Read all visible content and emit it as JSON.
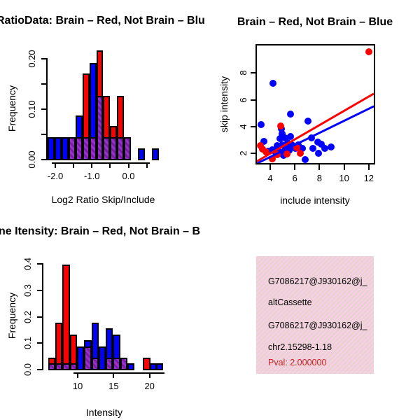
{
  "colors": {
    "brain_red": "#ff0000",
    "not_brain_blue": "#0000ff",
    "overlap_purple": "#9a2fd0",
    "overlap_purple_hatch": "#7a1ba6",
    "pval_red": "#cc2222",
    "info_box_pink": "#f7cfe5",
    "background": "#ffffff"
  },
  "chart_data": [
    {
      "id": "ratio_hist",
      "type": "bar",
      "title": "RatioData: Brain – Red, Not Brain – Blu",
      "xlabel": "Log2 Ratio Skip/Include",
      "ylabel": "Frequency",
      "series_legend": [
        {
          "name": "Brain",
          "color": "#ff0000"
        },
        {
          "name": "Not Brain",
          "color": "#0000ff"
        }
      ],
      "xlim": [
        -2.2,
        0.9
      ],
      "ylim": [
        0,
        0.22
      ],
      "x_ticks": [
        {
          "v": -2.0,
          "label": "-2.0"
        },
        {
          "v": -1.5,
          "label": ""
        },
        {
          "v": -1.0,
          "label": "-1.0"
        },
        {
          "v": -0.5,
          "label": ""
        },
        {
          "v": 0.0,
          "label": "0.0"
        },
        {
          "v": 0.5,
          "label": ""
        }
      ],
      "y_ticks": [
        {
          "v": 0.0,
          "label": "0.00"
        },
        {
          "v": 0.05,
          "label": ""
        },
        {
          "v": 0.1,
          "label": "0.10"
        },
        {
          "v": 0.15,
          "label": ""
        },
        {
          "v": 0.2,
          "label": "0.20"
        }
      ],
      "bar_width": 0.19,
      "bars": [
        {
          "x": -2.19,
          "red": 0,
          "blue": 0.043
        },
        {
          "x": -2.0,
          "red": 0,
          "blue": 0.043
        },
        {
          "x": -1.81,
          "red": 0,
          "blue": 0.043
        },
        {
          "x": -1.62,
          "red": 0.043,
          "blue": 0.043
        },
        {
          "x": -1.43,
          "red": 0.043,
          "blue": 0.086
        },
        {
          "x": -1.24,
          "red": 0.17,
          "blue": 0.043
        },
        {
          "x": -1.05,
          "red": 0.043,
          "blue": 0.19
        },
        {
          "x": -0.86,
          "red": 0.215,
          "blue": 0.125
        },
        {
          "x": -0.67,
          "red": 0.125,
          "blue": 0.043
        },
        {
          "x": -0.48,
          "red": 0.065,
          "blue": 0.043
        },
        {
          "x": -0.29,
          "red": 0.125,
          "blue": 0.043
        },
        {
          "x": -0.1,
          "red": 0.043,
          "blue": 0.043
        },
        {
          "x": 0.28,
          "red": 0,
          "blue": 0.021
        },
        {
          "x": 0.66,
          "red": 0,
          "blue": 0.021
        }
      ]
    },
    {
      "id": "scatter",
      "type": "scatter",
      "title": "Brain – Red, Not Brain – Blue",
      "xlabel": "include intensity",
      "ylabel": "skip intensity",
      "xlim": [
        2.95,
        12.45
      ],
      "ylim": [
        1.19,
        10.0
      ],
      "x_ticks": [
        {
          "v": 4,
          "label": "4"
        },
        {
          "v": 6,
          "label": "6"
        },
        {
          "v": 8,
          "label": "8"
        },
        {
          "v": 10,
          "label": "10"
        },
        {
          "v": 12,
          "label": "12"
        }
      ],
      "y_ticks": [
        {
          "v": 2,
          "label": "2"
        },
        {
          "v": 4,
          "label": "4"
        },
        {
          "v": 6,
          "label": "6"
        },
        {
          "v": 8,
          "label": "8"
        }
      ],
      "red_points": [
        [
          12.05,
          9.55
        ],
        [
          3.25,
          2.5
        ],
        [
          3.45,
          2.25
        ],
        [
          3.7,
          2.05
        ],
        [
          4.2,
          1.55
        ],
        [
          4.9,
          4.0
        ],
        [
          4.6,
          1.85
        ],
        [
          5.4,
          1.9
        ],
        [
          6.2,
          2.35
        ],
        [
          6.5,
          1.95
        ]
      ],
      "blue_points": [
        [
          4.3,
          7.2
        ],
        [
          3.3,
          4.1
        ],
        [
          5.7,
          4.85
        ],
        [
          7.1,
          4.35
        ],
        [
          3.55,
          2.85
        ],
        [
          4.95,
          3.8
        ],
        [
          5.05,
          3.4
        ],
        [
          5.25,
          3.1
        ],
        [
          5.45,
          2.75
        ],
        [
          5.7,
          3.2
        ],
        [
          5.8,
          2.6
        ],
        [
          6.1,
          2.3
        ],
        [
          6.35,
          2.55
        ],
        [
          6.65,
          2.3
        ],
        [
          6.9,
          1.5
        ],
        [
          7.4,
          3.1
        ],
        [
          7.5,
          2.3
        ],
        [
          7.9,
          2.8
        ],
        [
          8.0,
          1.95
        ],
        [
          8.2,
          2.65
        ],
        [
          8.5,
          2.3
        ],
        [
          9.0,
          2.4
        ],
        [
          3.9,
          2.1
        ],
        [
          4.2,
          2.2
        ],
        [
          4.5,
          2.0
        ],
        [
          4.7,
          2.15
        ],
        [
          4.95,
          1.95
        ],
        [
          5.2,
          2.1
        ],
        [
          5.35,
          2.35
        ],
        [
          5.6,
          2.15
        ],
        [
          4.85,
          3.05
        ],
        [
          5.0,
          2.55
        ],
        [
          4.6,
          2.5
        ],
        [
          5.15,
          1.8
        ]
      ],
      "red_line": {
        "x1": 2.95,
        "y1": 1.37,
        "x2": 12.44,
        "y2": 6.43
      },
      "blue_line": {
        "x1": 2.95,
        "y1": 1.2,
        "x2": 12.44,
        "y2": 5.47
      }
    },
    {
      "id": "intensity_hist",
      "type": "bar",
      "title": "ne Itensity: Brain – Red, Not Brain – B",
      "xlabel": "Intensity",
      "ylabel": "Frequency",
      "series_legend": [
        {
          "name": "Brain",
          "color": "#ff0000"
        },
        {
          "name": "Not Brain",
          "color": "#0000ff"
        }
      ],
      "xlim": [
        5.9,
        22.2
      ],
      "ylim": [
        0,
        0.42
      ],
      "x_ticks": [
        {
          "v": 10,
          "label": "10"
        },
        {
          "v": 15,
          "label": "15"
        },
        {
          "v": 20,
          "label": "20"
        }
      ],
      "y_ticks": [
        {
          "v": 0.0,
          "label": "0.0"
        },
        {
          "v": 0.1,
          "label": "0.1"
        },
        {
          "v": 0.2,
          "label": "0.2"
        },
        {
          "v": 0.3,
          "label": "0.3"
        },
        {
          "v": 0.4,
          "label": "0.4"
        }
      ],
      "bar_width": 1,
      "bars": [
        {
          "x": 6,
          "red": 0.042,
          "blue": 0.021
        },
        {
          "x": 7,
          "red": 0.175,
          "blue": 0.021
        },
        {
          "x": 8,
          "red": 0.395,
          "blue": 0.021
        },
        {
          "x": 9,
          "red": 0.13,
          "blue": 0.021
        },
        {
          "x": 10,
          "red": 0,
          "blue": 0.085
        },
        {
          "x": 11,
          "red": 0.085,
          "blue": 0.11
        },
        {
          "x": 12,
          "red": 0.042,
          "blue": 0.175
        },
        {
          "x": 13,
          "red": 0,
          "blue": 0.085
        },
        {
          "x": 14,
          "red": 0.042,
          "blue": 0.155
        },
        {
          "x": 15,
          "red": 0.042,
          "blue": 0.13
        },
        {
          "x": 16,
          "red": 0.042,
          "blue": 0.042
        },
        {
          "x": 17,
          "red": 0,
          "blue": 0.021
        },
        {
          "x": 19.2,
          "red": 0.042,
          "blue": 0
        },
        {
          "x": 20.1,
          "red": 0,
          "blue": 0.021
        },
        {
          "x": 21.0,
          "red": 0,
          "blue": 0.021
        }
      ]
    }
  ],
  "info_box": {
    "lines": [
      {
        "text": "G7086217@J930162@j_"
      },
      {
        "text": "altCassette"
      },
      {
        "text": "G7086217@J930162@j_"
      },
      {
        "text": "chr2.15298-1.18"
      },
      {
        "text": "Pval: 2.000000"
      }
    ],
    "pval_color": "#cc2222"
  }
}
